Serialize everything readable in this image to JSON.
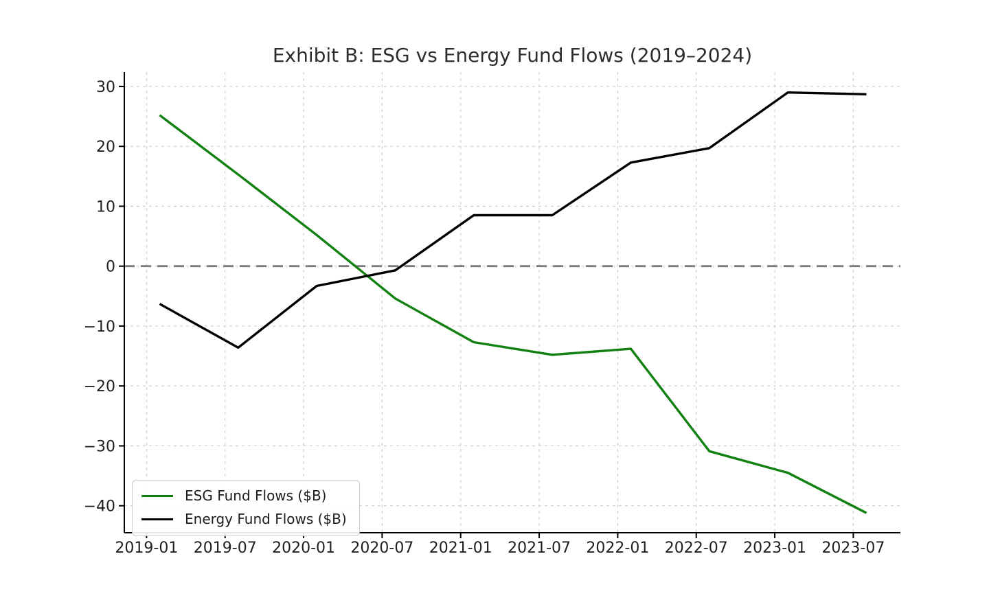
{
  "chart_data": {
    "type": "line",
    "title": "Exhibit B: ESG vs Energy Fund Flows (2019–2024)",
    "x_tick_labels": [
      "2019-01",
      "2019-07",
      "2020-01",
      "2020-07",
      "2021-01",
      "2021-07",
      "2022-01",
      "2022-07",
      "2023-01",
      "2023-07"
    ],
    "x_tick_months": [
      0,
      6,
      12,
      18,
      24,
      30,
      36,
      42,
      48,
      54
    ],
    "x_months": [
      1,
      7,
      13,
      19,
      25,
      31,
      37,
      43,
      49,
      55
    ],
    "y_tick_values": [
      30,
      20,
      10,
      0,
      -10,
      -20,
      -30,
      -40
    ],
    "y_tick_labels": [
      "30",
      "20",
      "10",
      "0",
      "−10",
      "−20",
      "−30",
      "−40"
    ],
    "xlim_months": [
      -1.7,
      57.6
    ],
    "ylim": [
      -44.5,
      32.4
    ],
    "grid": "dashed",
    "grid_color": "#cccccc",
    "zero_line": {
      "value": 0,
      "color": "#7a7a7a",
      "style": "dashed"
    },
    "axis_color": "#000000",
    "legend_position": "lower-left",
    "series": [
      {
        "name": "ESG Fund Flows ($B)",
        "color": "#128112",
        "values": [
          25.2,
          15.3,
          5.2,
          -5.4,
          -12.7,
          -14.8,
          -13.8,
          -30.9,
          -34.5,
          -41.2
        ]
      },
      {
        "name": "Energy Fund Flows ($B)",
        "color": "#000000",
        "values": [
          -6.3,
          -13.6,
          -3.3,
          -0.7,
          8.5,
          8.5,
          17.3,
          19.7,
          29.0,
          28.7
        ]
      }
    ]
  }
}
